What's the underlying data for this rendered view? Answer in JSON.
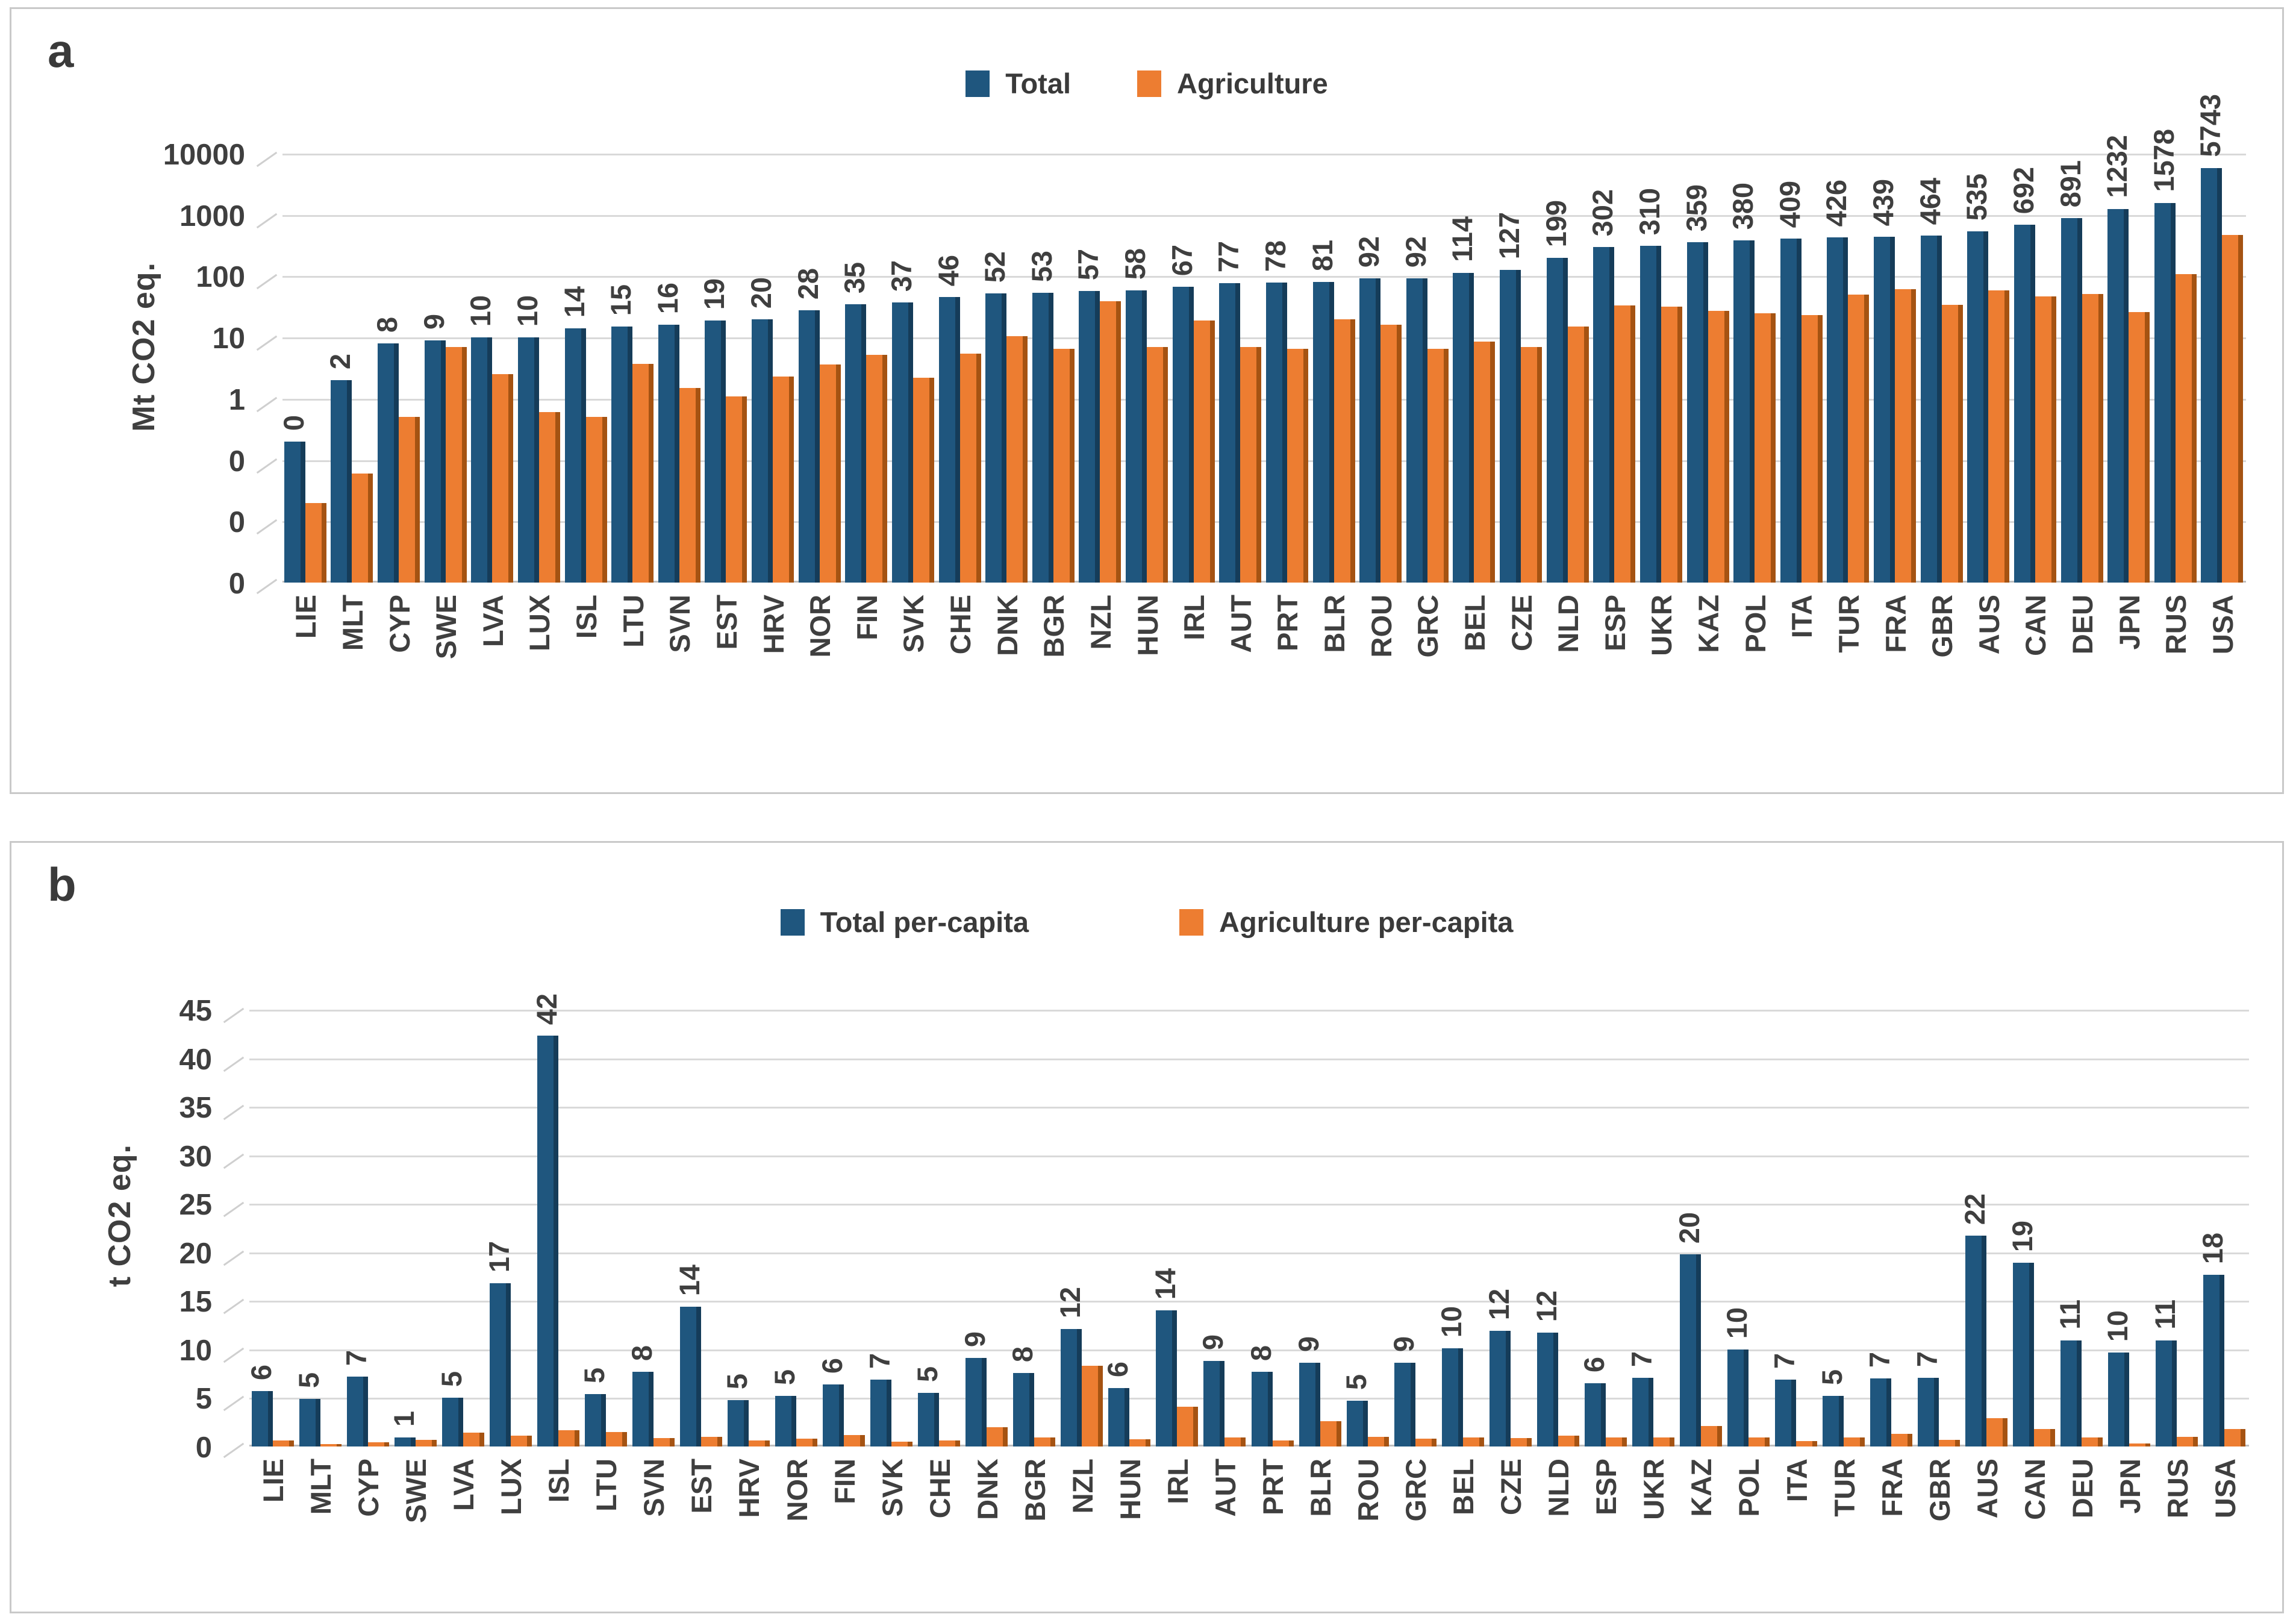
{
  "figure": {
    "background": "#FFFFFF",
    "text_color": "#3F3F3F",
    "gridline_color": "#D9D9D9",
    "total_color": "#1F567E",
    "total_side_color": "#153C59",
    "agriculture_color": "#ED7D31",
    "agriculture_side_color": "#A55312"
  },
  "chart_data": [
    {
      "panel_label": "a",
      "type": "bar",
      "scale": "log",
      "ylabel": "Mt CO2 eq.",
      "ymin": 0.001,
      "ymax": 10000,
      "yticks": [
        "10000",
        "1000",
        "100",
        "10",
        "1",
        "0",
        "0",
        "0"
      ],
      "grid": true,
      "legend_position": "top-center",
      "legend": [
        {
          "name": "Total",
          "color": "#1F567E"
        },
        {
          "name": "Agriculture",
          "color": "#ED7D31"
        }
      ],
      "categories": [
        "LIE",
        "MLT",
        "CYP",
        "SWE",
        "LVA",
        "LUX",
        "ISL",
        "LTU",
        "SVN",
        "EST",
        "HRV",
        "NOR",
        "FIN",
        "SVK",
        "CHE",
        "DNK",
        "BGR",
        "NZL",
        "HUN",
        "IRL",
        "AUT",
        "PRT",
        "BLR",
        "ROU",
        "GRC",
        "BEL",
        "CZE",
        "NLD",
        "ESP",
        "UKR",
        "KAZ",
        "POL",
        "ITA",
        "TUR",
        "FRA",
        "GBR",
        "AUS",
        "CAN",
        "DEU",
        "JPN",
        "RUS",
        "USA"
      ],
      "series": [
        {
          "name": "Total",
          "values": [
            0.2,
            2,
            8,
            9,
            10,
            10,
            14,
            15,
            16,
            19,
            20,
            28,
            35,
            37,
            46,
            52,
            53,
            57,
            58,
            67,
            77,
            78,
            81,
            92,
            92,
            114,
            127,
            199,
            302,
            310,
            359,
            380,
            409,
            426,
            439,
            464,
            535,
            692,
            891,
            1232,
            1578,
            5743
          ],
          "labels": [
            "0",
            "2",
            "8",
            "9",
            "10",
            "10",
            "14",
            "15",
            "16",
            "19",
            "20",
            "28",
            "35",
            "37",
            "46",
            "52",
            "53",
            "57",
            "58",
            "67",
            "77",
            "78",
            "81",
            "92",
            "92",
            "114",
            "127",
            "199",
            "302",
            "310",
            "359",
            "380",
            "409",
            "426",
            "439",
            "464",
            "535",
            "692",
            "891",
            "1232",
            "1578",
            "5743"
          ]
        },
        {
          "name": "Agriculture",
          "values": [
            0.02,
            0.06,
            0.5,
            7,
            2.5,
            0.6,
            0.5,
            3.7,
            1.5,
            1.1,
            2.3,
            3.6,
            5.2,
            2.2,
            5.5,
            10.5,
            6.5,
            39,
            7,
            19,
            7,
            6.5,
            20,
            16,
            6.5,
            8.5,
            7,
            15,
            33,
            32,
            27,
            25,
            23,
            50,
            62,
            34,
            58,
            47,
            51,
            26,
            108,
            470
          ]
        }
      ]
    },
    {
      "panel_label": "b",
      "type": "bar",
      "scale": "linear",
      "ylabel": "t CO2 eq.",
      "ymin": 0,
      "ymax": 45,
      "yticks": [
        "45",
        "40",
        "35",
        "30",
        "25",
        "20",
        "15",
        "10",
        "5",
        "0"
      ],
      "grid": true,
      "legend_position": "top-center",
      "legend": [
        {
          "name": "Total per-capita",
          "color": "#1F567E"
        },
        {
          "name": "Agriculture per-capita",
          "color": "#ED7D31"
        }
      ],
      "categories": [
        "LIE",
        "MLT",
        "CYP",
        "SWE",
        "LVA",
        "LUX",
        "ISL",
        "LTU",
        "SVN",
        "EST",
        "HRV",
        "NOR",
        "FIN",
        "SVK",
        "CHE",
        "DNK",
        "BGR",
        "NZL",
        "HUN",
        "IRL",
        "AUT",
        "PRT",
        "BLR",
        "ROU",
        "GRC",
        "BEL",
        "CZE",
        "NLD",
        "ESP",
        "UKR",
        "KAZ",
        "POL",
        "ITA",
        "TUR",
        "FRA",
        "GBR",
        "AUS",
        "CAN",
        "DEU",
        "JPN",
        "RUS",
        "USA"
      ],
      "series": [
        {
          "name": "Total per-capita",
          "values": [
            5.7,
            4.9,
            7.2,
            0.9,
            5.0,
            16.8,
            42.3,
            5.4,
            7.7,
            14.4,
            4.8,
            5.2,
            6.4,
            6.9,
            5.5,
            9.1,
            7.6,
            12.1,
            6.0,
            14.0,
            8.8,
            7.7,
            8.6,
            4.7,
            8.6,
            10.1,
            11.9,
            11.7,
            6.5,
            7.1,
            19.8,
            10.0,
            6.9,
            5.2,
            7.0,
            7.1,
            21.7,
            18.9,
            10.9,
            9.7,
            10.9,
            17.7
          ],
          "labels": [
            "6",
            "5",
            "7",
            "1",
            "5",
            "17",
            "42",
            "5",
            "8",
            "14",
            "5",
            "5",
            "6",
            "7",
            "5",
            "9",
            "8",
            "12",
            "6",
            "14",
            "9",
            "8",
            "9",
            "5",
            "9",
            "10",
            "12",
            "12",
            "6",
            "7",
            "20",
            "10",
            "7",
            "5",
            "7",
            "7",
            "22",
            "19",
            "11",
            "10",
            "11",
            "18"
          ]
        },
        {
          "name": "Agriculture per-capita",
          "values": [
            0.6,
            0.25,
            0.45,
            0.7,
            1.4,
            1.1,
            1.7,
            1.5,
            0.85,
            1.0,
            0.6,
            0.8,
            1.2,
            0.5,
            0.65,
            2.0,
            0.9,
            8.3,
            0.75,
            4.1,
            0.9,
            0.65,
            2.6,
            1.0,
            0.8,
            0.9,
            0.85,
            1.1,
            0.95,
            0.95,
            2.1,
            0.9,
            0.55,
            0.9,
            1.3,
            0.7,
            2.9,
            1.8,
            0.9,
            0.3,
            1.0,
            1.8
          ]
        }
      ]
    }
  ]
}
